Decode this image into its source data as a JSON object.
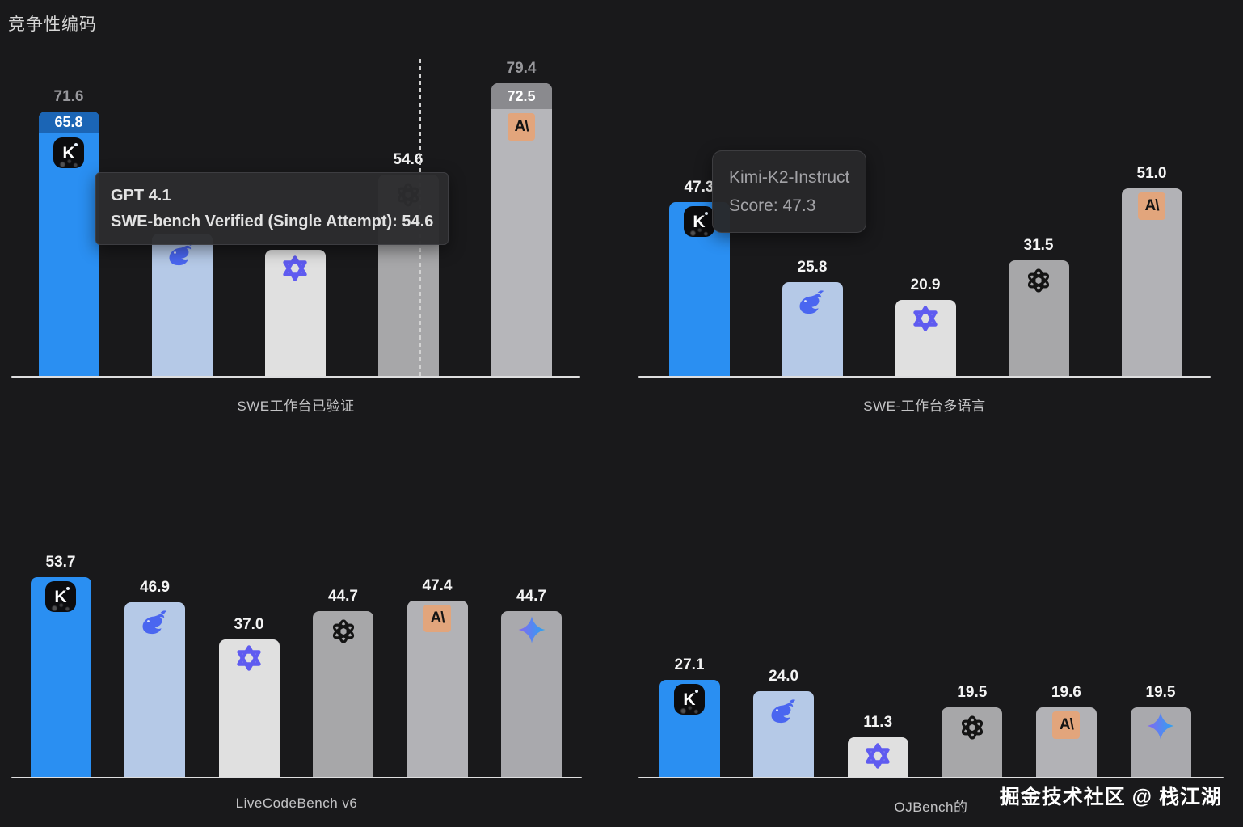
{
  "page": {
    "title": "竞争性编码",
    "watermark": "掘金技术社区 @ 栈江湖",
    "background": "#19191b"
  },
  "tooltips": [
    {
      "lines": [
        "GPT 4.1",
        "SWE-bench Verified (Single Attempt): 54.6"
      ]
    },
    {
      "lines": [
        "Kimi-K2-Instruct",
        "Score: 47.3"
      ]
    }
  ],
  "colors": {
    "kimi_bar": "#2a8ff2",
    "kimi_cap": "#1b65b5",
    "deepseek_bar": "#b5c9e7",
    "qwen_bar": "#e0e0e0",
    "openai_bar": "#a7a7a9",
    "anthropic_bar": "#b6b6ba",
    "anthropic_cap": "#8a8a8e",
    "gemini_bar": "#a9a9ad",
    "deepseek_logo": "#4a66f0",
    "qwen_logo": "#5f5bf0",
    "anthropic_tile": "#e2a57c",
    "gemini_grad": [
      "#8468f0",
      "#2ba3f2"
    ],
    "axis": "#dededf",
    "multi_label": "#97979b",
    "value_label": "#f4f4f4"
  },
  "chart_data": [
    {
      "type": "bar",
      "title": "SWE工作台已验证",
      "bars": [
        {
          "model": "Kimi-K2-Instruct",
          "icon": "kimi",
          "value": 65.8,
          "multi_value": 71.6,
          "bar_color": "#2a8ff2",
          "cap_color": "#1b65b5",
          "label_visible": true
        },
        {
          "model": "DeepSeek",
          "icon": "deepseek",
          "value": 38.8,
          "bar_color": "#b5c9e7",
          "label_visible": false
        },
        {
          "model": "Qwen",
          "icon": "qwen",
          "value": 34.4,
          "bar_color": "#e0e0e0",
          "label_visible": false
        },
        {
          "model": "GPT 4.1",
          "icon": "openai",
          "value": 54.6,
          "bar_color": "#a7a7a9",
          "label_visible": true,
          "hovered": true
        },
        {
          "model": "Claude",
          "icon": "anthropic",
          "value": 72.5,
          "multi_value": 79.4,
          "bar_color": "#b6b6ba",
          "cap_color": "#8a8a8e",
          "label_visible": true
        }
      ]
    },
    {
      "type": "bar",
      "title": "SWE-工作台多语言",
      "bars": [
        {
          "model": "Kimi-K2-Instruct",
          "icon": "kimi",
          "value": 47.3,
          "bar_color": "#2a8ff2",
          "label_visible": true
        },
        {
          "model": "DeepSeek",
          "icon": "deepseek",
          "value": 25.8,
          "bar_color": "#b5c9e7",
          "label_visible": true
        },
        {
          "model": "Qwen",
          "icon": "qwen",
          "value": 20.9,
          "bar_color": "#e0e0e0",
          "label_visible": true
        },
        {
          "model": "GPT 4.1",
          "icon": "openai",
          "value": 31.5,
          "bar_color": "#a7a7a9",
          "label_visible": true
        },
        {
          "model": "Claude",
          "icon": "anthropic",
          "value": 51.0,
          "bar_color": "#b2b2b6",
          "label_visible": true
        }
      ]
    },
    {
      "type": "bar",
      "title": "LiveCodeBench v6",
      "bars": [
        {
          "model": "Kimi-K2-Instruct",
          "icon": "kimi",
          "value": 53.7,
          "bar_color": "#2a8ff2",
          "label_visible": true
        },
        {
          "model": "DeepSeek",
          "icon": "deepseek",
          "value": 46.9,
          "bar_color": "#b5c9e7",
          "label_visible": true
        },
        {
          "model": "Qwen",
          "icon": "qwen",
          "value": 37.0,
          "bar_color": "#e0e0e0",
          "label_visible": true
        },
        {
          "model": "GPT 4.1",
          "icon": "openai",
          "value": 44.7,
          "bar_color": "#a7a7a9",
          "label_visible": true
        },
        {
          "model": "Claude",
          "icon": "anthropic",
          "value": 47.4,
          "bar_color": "#b2b2b6",
          "label_visible": true
        },
        {
          "model": "Gemini",
          "icon": "gemini",
          "value": 44.7,
          "bar_color": "#a9a9ad",
          "label_visible": true
        }
      ]
    },
    {
      "type": "bar",
      "title": "OJBench的",
      "bars": [
        {
          "model": "Kimi-K2-Instruct",
          "icon": "kimi",
          "value": 27.1,
          "bar_color": "#2a8ff2",
          "label_visible": true
        },
        {
          "model": "DeepSeek",
          "icon": "deepseek",
          "value": 24.0,
          "bar_color": "#b5c9e7",
          "label_visible": true
        },
        {
          "model": "Qwen",
          "icon": "qwen",
          "value": 11.3,
          "bar_color": "#e0e0e0",
          "label_visible": true
        },
        {
          "model": "GPT 4.1",
          "icon": "openai",
          "value": 19.5,
          "bar_color": "#a7a7a9",
          "label_visible": true
        },
        {
          "model": "Claude",
          "icon": "anthropic",
          "value": 19.6,
          "bar_color": "#b2b2b6",
          "label_visible": true
        },
        {
          "model": "Gemini",
          "icon": "gemini",
          "value": 19.5,
          "bar_color": "#a9a9ad",
          "label_visible": true
        }
      ]
    }
  ]
}
